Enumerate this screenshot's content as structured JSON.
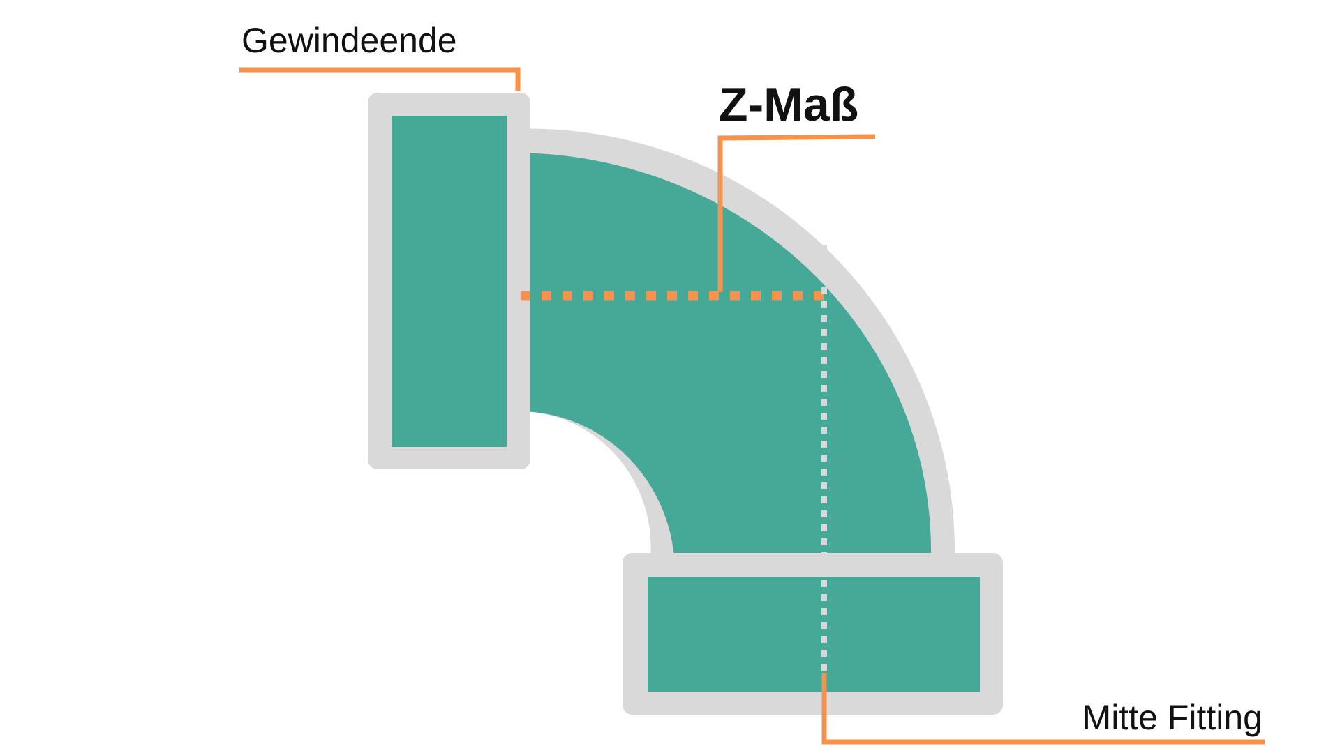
{
  "diagram": {
    "labels": {
      "thread_end": "Gewindeende",
      "z_dimension": "Z-Maß",
      "fitting_center": "Mitte Fitting"
    },
    "colors": {
      "body_fill": "#46a896",
      "outline": "#d9d9d9",
      "leader_line": "#f5924e",
      "center_line": "#d9d9d9",
      "text": "#111111",
      "background": "#ffffff"
    }
  }
}
